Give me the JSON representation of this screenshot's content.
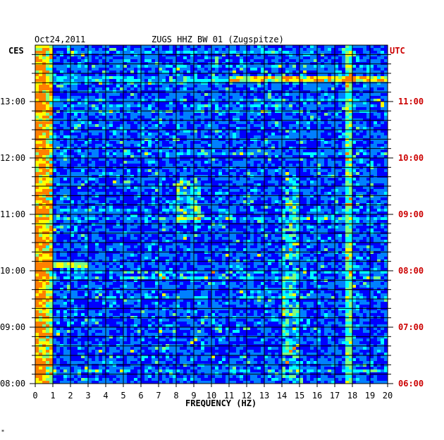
{
  "chart_data": {
    "type": "heatmap",
    "date": "Oct24,2011",
    "title": "ZUGS HHZ BW 01 (Zugspitze)",
    "left_axis_label": "CES",
    "right_axis_label": "UTC",
    "xlabel": "FREQUENCY (HZ)",
    "xlim": [
      0,
      20
    ],
    "x_ticks": [
      "0",
      "1",
      "2",
      "3",
      "4",
      "5",
      "6",
      "7",
      "8",
      "9",
      "10",
      "11",
      "12",
      "13",
      "14",
      "15",
      "16",
      "17",
      "18",
      "19",
      "20"
    ],
    "left_ticks": [
      "13:00",
      "12:00",
      "11:00",
      "10:00",
      "09:00",
      "08:00"
    ],
    "right_ticks": [
      "11:00",
      "10:00",
      "09:00",
      "08:00",
      "07:00",
      "06:00"
    ],
    "time_range_local": [
      "08:00",
      "13:50"
    ],
    "colormap": [
      "#00007f",
      "#0000ff",
      "#0080ff",
      "#00ffff",
      "#80ff80",
      "#ffff00",
      "#ff8000",
      "#ff0000"
    ],
    "notable_features": [
      {
        "freq_range_hz": [
          0,
          1
        ],
        "description": "persistent high energy band"
      },
      {
        "freq_range_hz": [
          0.5,
          3
        ],
        "time": "09:55",
        "description": "strong horizontal burst"
      },
      {
        "freq_range_hz": [
          8,
          9.5
        ],
        "time": "10:40-11:25",
        "description": "patches"
      },
      {
        "freq_range_hz": [
          11,
          20
        ],
        "time": "13:15",
        "description": "broad band burst"
      },
      {
        "freq_range_hz": [
          14,
          15
        ],
        "time": "08:00-11:30",
        "description": "intermittent activity"
      },
      {
        "freq_hz": 17.8,
        "description": "narrow persistent line"
      }
    ]
  },
  "footer_mark": "*"
}
